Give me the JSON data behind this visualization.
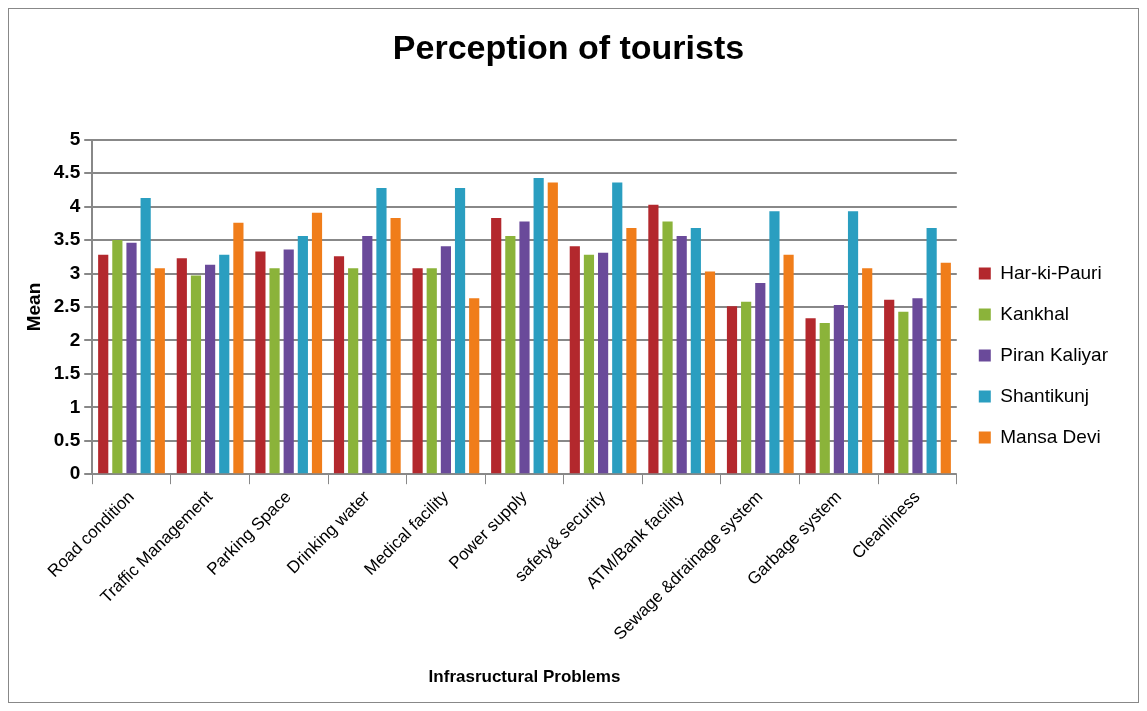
{
  "chart_data": {
    "type": "bar",
    "title": "Perception of tourists",
    "xlabel": "Infrasructural Problems",
    "ylabel": "Mean",
    "categories": [
      "Road condition",
      "Traffic Management",
      "Parking Space",
      "Drinking water",
      "Medical facility",
      "Power supply",
      "safety& security",
      "ATM/Bank facility",
      "Sewage &drainage system",
      "Garbage system",
      "Cleanliness"
    ],
    "series": [
      {
        "name": "Har-ki-Pauri",
        "color": "#b3282d",
        "values": [
          3.28,
          3.23,
          3.33,
          3.26,
          3.08,
          3.83,
          3.41,
          4.03,
          2.51,
          2.33,
          2.61
        ]
      },
      {
        "name": "Kankhal",
        "color": "#8bb33a",
        "values": [
          3.5,
          2.97,
          3.08,
          3.08,
          3.08,
          3.56,
          3.28,
          3.78,
          2.58,
          2.26,
          2.43
        ]
      },
      {
        "name": "Piran Kaliyar",
        "color": "#6a4a9a",
        "values": [
          3.46,
          3.13,
          3.36,
          3.56,
          3.41,
          3.78,
          3.31,
          3.56,
          2.86,
          2.53,
          2.63
        ]
      },
      {
        "name": "Shantikunj",
        "color": "#2a9ec0",
        "values": [
          4.13,
          3.28,
          3.56,
          4.28,
          4.28,
          4.43,
          4.36,
          3.68,
          3.93,
          3.93,
          3.68
        ]
      },
      {
        "name": "Mansa Devi",
        "color": "#f07d1a",
        "values": [
          3.08,
          3.76,
          3.91,
          3.83,
          2.63,
          4.36,
          3.68,
          3.03,
          3.28,
          3.08,
          3.16
        ]
      }
    ],
    "ylim": [
      0,
      5
    ],
    "yticks": [
      0,
      0.5,
      1,
      1.5,
      2,
      2.5,
      3,
      3.5,
      4,
      4.5,
      5
    ],
    "grid": "y",
    "legend": "right"
  }
}
